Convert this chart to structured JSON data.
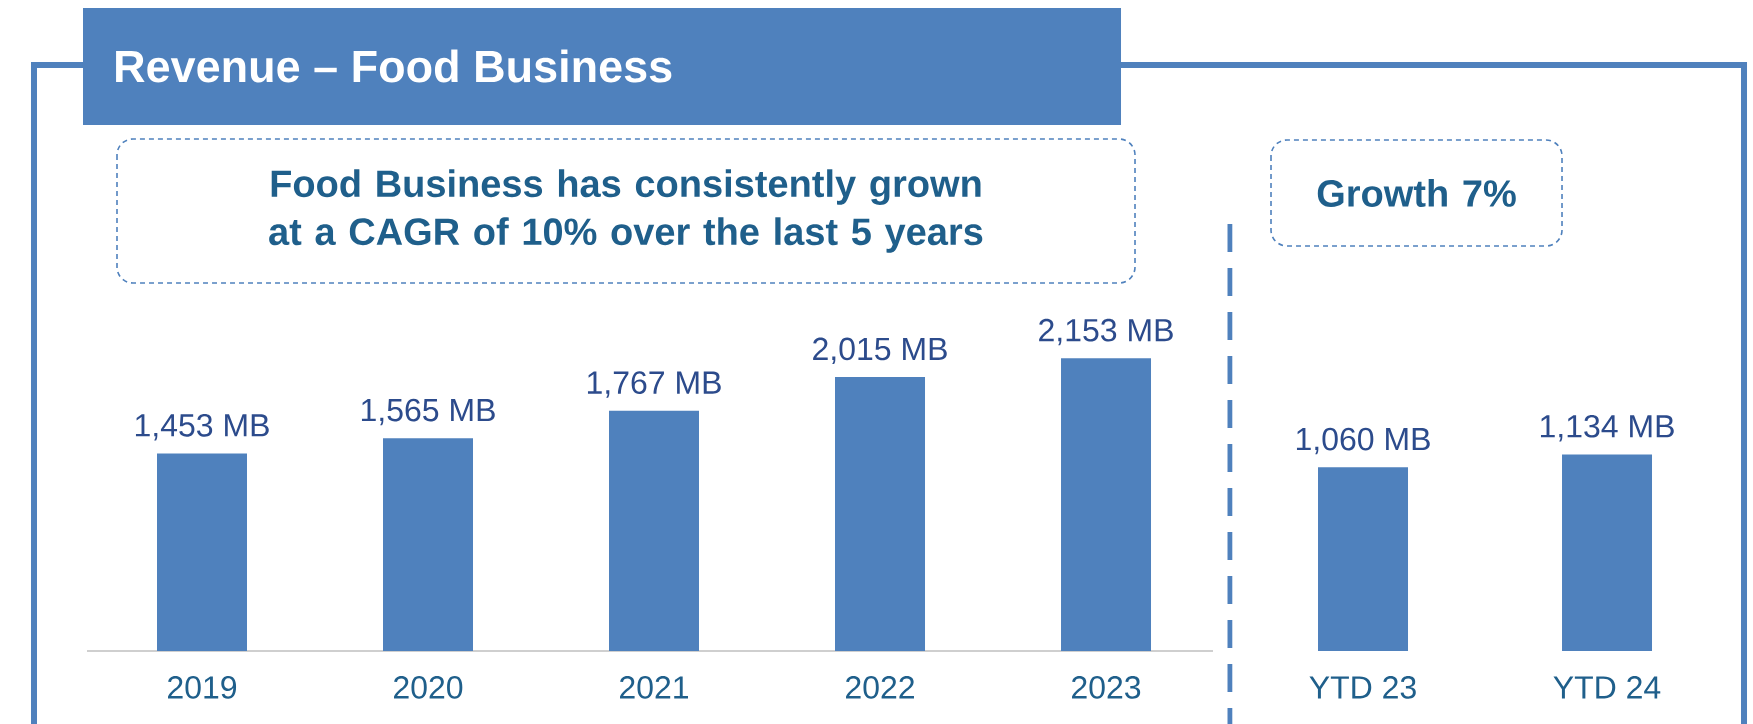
{
  "chart_data": [
    {
      "type": "bar",
      "title": "Revenue – Food Business",
      "annotations": [
        "Food Business has consistently grown at a CAGR of 10% over the last 5 years"
      ],
      "categories": [
        "2019",
        "2020",
        "2021",
        "2022",
        "2023"
      ],
      "values": [
        1453,
        1565,
        1767,
        2015,
        2153
      ],
      "value_labels": [
        "1,453 MB",
        "1,565 MB",
        "1,767 MB",
        "2,015 MB",
        "2,153 MB"
      ],
      "color": "#4f81bd",
      "tick_labels": "x"
    },
    {
      "type": "bar",
      "annotations": [
        "Growth 7%"
      ],
      "categories": [
        "YTD 23",
        "YTD 24"
      ],
      "values": [
        1060,
        1134
      ],
      "value_labels": [
        "1,060 MB",
        "1,134 MB"
      ],
      "color": "#4f81bd",
      "tick_labels": "x"
    }
  ]
}
